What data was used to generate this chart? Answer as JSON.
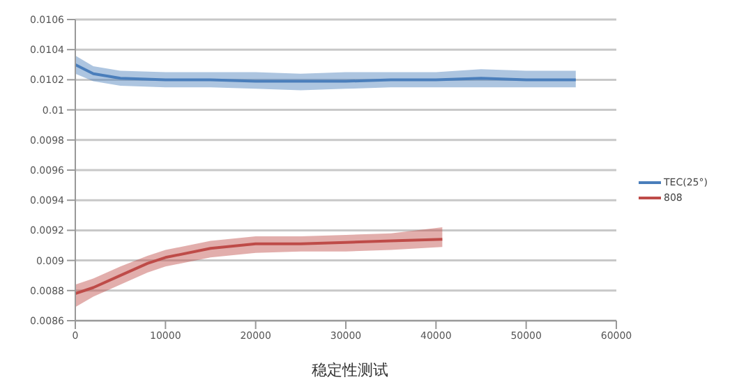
{
  "chart_data": {
    "type": "line",
    "xlabel": "稳定性测试",
    "xlim": [
      0,
      60000
    ],
    "xticks": [
      0,
      10000,
      20000,
      30000,
      40000,
      50000,
      60000
    ],
    "ylim": [
      0.0086,
      0.0106
    ],
    "yticks": [
      0.0086,
      0.0088,
      0.009,
      0.0092,
      0.0094,
      0.0096,
      0.0098,
      0.01,
      0.0102,
      0.0104,
      0.0106
    ],
    "grid": "y",
    "legend": "right",
    "marker": "none",
    "line_style": "solid",
    "series": [
      {
        "name": "TEC(25°)",
        "color": "#4a7ebb",
        "x": [
          0,
          2000,
          5000,
          10000,
          15000,
          20000,
          25000,
          30000,
          35000,
          40000,
          45000,
          50000,
          55500
        ],
        "values": [
          0.0103,
          0.01024,
          0.01021,
          0.0102,
          0.0102,
          0.01019,
          0.01019,
          0.01019,
          0.0102,
          0.0102,
          0.01021,
          0.0102,
          0.0102
        ],
        "lower": [
          0.01024,
          0.01019,
          0.01016,
          0.01015,
          0.01015,
          0.01014,
          0.01013,
          0.01014,
          0.01015,
          0.01015,
          0.01015,
          0.01015,
          0.01015
        ],
        "upper": [
          0.01036,
          0.01029,
          0.01026,
          0.01025,
          0.01025,
          0.01025,
          0.01024,
          0.01025,
          0.01025,
          0.01025,
          0.01027,
          0.01026,
          0.01026
        ]
      },
      {
        "name": "808",
        "color": "#be4b48",
        "x": [
          0,
          2000,
          5000,
          8000,
          10000,
          15000,
          20000,
          25000,
          30000,
          35000,
          40700
        ],
        "values": [
          0.00878,
          0.00882,
          0.0089,
          0.00898,
          0.00902,
          0.00908,
          0.00911,
          0.00911,
          0.00912,
          0.00913,
          0.00914
        ],
        "lower": [
          0.00869,
          0.00876,
          0.00884,
          0.00892,
          0.00896,
          0.00902,
          0.00905,
          0.00906,
          0.00906,
          0.00907,
          0.00909
        ],
        "upper": [
          0.00884,
          0.00888,
          0.00896,
          0.00903,
          0.00907,
          0.00913,
          0.00916,
          0.00916,
          0.00917,
          0.00918,
          0.00922
        ]
      }
    ]
  }
}
